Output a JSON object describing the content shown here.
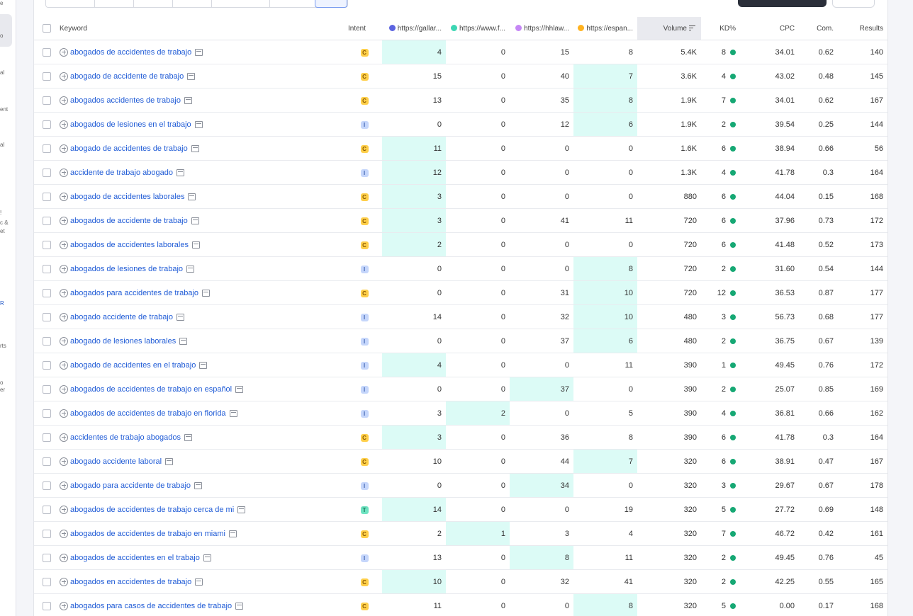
{
  "sidebar": {
    "fragments": [
      "e",
      "o",
      "al",
      "ent",
      "al",
      "!",
      "c &",
      "et",
      "R",
      "rts",
      "o",
      "er"
    ]
  },
  "colors": {
    "highlight": "#dcfbf6",
    "link": "#1f5bd6",
    "kd_dot": "#16a874",
    "competitors": [
      "#5b63e0",
      "#3cd6b3",
      "#c587f5",
      "#ffb21f"
    ]
  },
  "table": {
    "headers": {
      "keyword": "Keyword",
      "intent": "Intent",
      "comp1": "https://gallar...",
      "comp2": "https://www.f...",
      "comp3": "https://hhlaw...",
      "comp4": "https://espan...",
      "volume": "Volume",
      "kd": "KD%",
      "cpc": "CPC",
      "com": "Com.",
      "results": "Results"
    },
    "sorted_by": "volume",
    "rows": [
      {
        "keyword": "abogados de accidentes de trabajo",
        "intent": "C",
        "c1": "4",
        "c2": "0",
        "c3": "15",
        "c4": "8",
        "hl": 1,
        "volume": "5.4K",
        "kd": "8",
        "cpc": "34.01",
        "com": "0.62",
        "results": "140"
      },
      {
        "keyword": "abogado de accidente de trabajo",
        "intent": "C",
        "c1": "15",
        "c2": "0",
        "c3": "40",
        "c4": "7",
        "hl": 4,
        "volume": "3.6K",
        "kd": "4",
        "cpc": "43.02",
        "com": "0.48",
        "results": "145"
      },
      {
        "keyword": "abogados accidentes de trabajo",
        "intent": "C",
        "c1": "13",
        "c2": "0",
        "c3": "35",
        "c4": "8",
        "hl": 4,
        "volume": "1.9K",
        "kd": "7",
        "cpc": "34.01",
        "com": "0.62",
        "results": "167"
      },
      {
        "keyword": "abogados de lesiones en el trabajo",
        "intent": "I",
        "c1": "0",
        "c2": "0",
        "c3": "12",
        "c4": "6",
        "hl": 4,
        "volume": "1.9K",
        "kd": "2",
        "cpc": "39.54",
        "com": "0.25",
        "results": "144"
      },
      {
        "keyword": "abogado de accidentes de trabajo",
        "intent": "C",
        "c1": "11",
        "c2": "0",
        "c3": "0",
        "c4": "0",
        "hl": 1,
        "volume": "1.6K",
        "kd": "6",
        "cpc": "38.94",
        "com": "0.66",
        "results": "56"
      },
      {
        "keyword": "accidente de trabajo abogado",
        "intent": "I",
        "c1": "12",
        "c2": "0",
        "c3": "0",
        "c4": "0",
        "hl": 1,
        "volume": "1.3K",
        "kd": "4",
        "cpc": "41.78",
        "com": "0.3",
        "results": "164"
      },
      {
        "keyword": "abogado de accidentes laborales",
        "intent": "C",
        "c1": "3",
        "c2": "0",
        "c3": "0",
        "c4": "0",
        "hl": 1,
        "volume": "880",
        "kd": "6",
        "cpc": "44.04",
        "com": "0.15",
        "results": "168"
      },
      {
        "keyword": "abogados de accidente de trabajo",
        "intent": "C",
        "c1": "3",
        "c2": "0",
        "c3": "41",
        "c4": "11",
        "hl": 1,
        "volume": "720",
        "kd": "6",
        "cpc": "37.96",
        "com": "0.73",
        "results": "172"
      },
      {
        "keyword": "abogados de accidentes laborales",
        "intent": "C",
        "c1": "2",
        "c2": "0",
        "c3": "0",
        "c4": "0",
        "hl": 1,
        "volume": "720",
        "kd": "6",
        "cpc": "41.48",
        "com": "0.52",
        "results": "173"
      },
      {
        "keyword": "abogados de lesiones de trabajo",
        "intent": "I",
        "c1": "0",
        "c2": "0",
        "c3": "0",
        "c4": "8",
        "hl": 4,
        "volume": "720",
        "kd": "2",
        "cpc": "31.60",
        "com": "0.54",
        "results": "144"
      },
      {
        "keyword": "abogados para accidentes de trabajo",
        "intent": "C",
        "c1": "0",
        "c2": "0",
        "c3": "31",
        "c4": "10",
        "hl": 4,
        "volume": "720",
        "kd": "12",
        "cpc": "36.53",
        "com": "0.87",
        "results": "177"
      },
      {
        "keyword": "abogado accidente de trabajo",
        "intent": "I",
        "c1": "14",
        "c2": "0",
        "c3": "32",
        "c4": "10",
        "hl": 4,
        "volume": "480",
        "kd": "3",
        "cpc": "56.73",
        "com": "0.68",
        "results": "177"
      },
      {
        "keyword": "abogado de lesiones laborales",
        "intent": "I",
        "c1": "0",
        "c2": "0",
        "c3": "37",
        "c4": "6",
        "hl": 4,
        "volume": "480",
        "kd": "2",
        "cpc": "36.75",
        "com": "0.67",
        "results": "139"
      },
      {
        "keyword": "abogado de accidentes en el trabajo",
        "intent": "I",
        "c1": "4",
        "c2": "0",
        "c3": "0",
        "c4": "11",
        "hl": 1,
        "volume": "390",
        "kd": "1",
        "cpc": "49.45",
        "com": "0.76",
        "results": "172"
      },
      {
        "keyword": "abogados de accidentes de trabajo en español",
        "intent": "I",
        "c1": "0",
        "c2": "0",
        "c3": "37",
        "c4": "0",
        "hl": 3,
        "volume": "390",
        "kd": "2",
        "cpc": "25.07",
        "com": "0.85",
        "results": "169"
      },
      {
        "keyword": "abogados de accidentes de trabajo en florida",
        "intent": "I",
        "c1": "3",
        "c2": "2",
        "c3": "0",
        "c4": "5",
        "hl": 2,
        "volume": "390",
        "kd": "4",
        "cpc": "36.81",
        "com": "0.66",
        "results": "162"
      },
      {
        "keyword": "accidentes de trabajo abogados",
        "intent": "C",
        "c1": "3",
        "c2": "0",
        "c3": "36",
        "c4": "8",
        "hl": 1,
        "volume": "390",
        "kd": "6",
        "cpc": "41.78",
        "com": "0.3",
        "results": "164"
      },
      {
        "keyword": "abogado accidente laboral",
        "intent": "C",
        "c1": "10",
        "c2": "0",
        "c3": "44",
        "c4": "7",
        "hl": 4,
        "volume": "320",
        "kd": "6",
        "cpc": "38.91",
        "com": "0.47",
        "results": "167"
      },
      {
        "keyword": "abogado para accidente de trabajo",
        "intent": "I",
        "c1": "0",
        "c2": "0",
        "c3": "34",
        "c4": "0",
        "hl": 3,
        "volume": "320",
        "kd": "3",
        "cpc": "29.67",
        "com": "0.67",
        "results": "178"
      },
      {
        "keyword": "abogados de accidentes de trabajo cerca de mi",
        "intent": "T",
        "c1": "14",
        "c2": "0",
        "c3": "0",
        "c4": "19",
        "hl": 1,
        "volume": "320",
        "kd": "5",
        "cpc": "27.72",
        "com": "0.69",
        "results": "148"
      },
      {
        "keyword": "abogados de accidentes de trabajo en miami",
        "intent": "C",
        "c1": "2",
        "c2": "1",
        "c3": "3",
        "c4": "4",
        "hl": 2,
        "volume": "320",
        "kd": "7",
        "cpc": "46.72",
        "com": "0.42",
        "results": "161"
      },
      {
        "keyword": "abogados de accidentes en el trabajo",
        "intent": "I",
        "c1": "13",
        "c2": "0",
        "c3": "8",
        "c4": "11",
        "hl": 3,
        "volume": "320",
        "kd": "2",
        "cpc": "49.45",
        "com": "0.76",
        "results": "45"
      },
      {
        "keyword": "abogados en accidentes de trabajo",
        "intent": "C",
        "c1": "10",
        "c2": "0",
        "c3": "32",
        "c4": "41",
        "hl": 1,
        "volume": "320",
        "kd": "2",
        "cpc": "42.25",
        "com": "0.55",
        "results": "165"
      },
      {
        "keyword": "abogados para casos de accidentes de trabajo",
        "intent": "C",
        "c1": "11",
        "c2": "0",
        "c3": "0",
        "c4": "8",
        "hl": 4,
        "volume": "320",
        "kd": "5",
        "cpc": "0.00",
        "com": "0.17",
        "results": "168"
      }
    ]
  }
}
